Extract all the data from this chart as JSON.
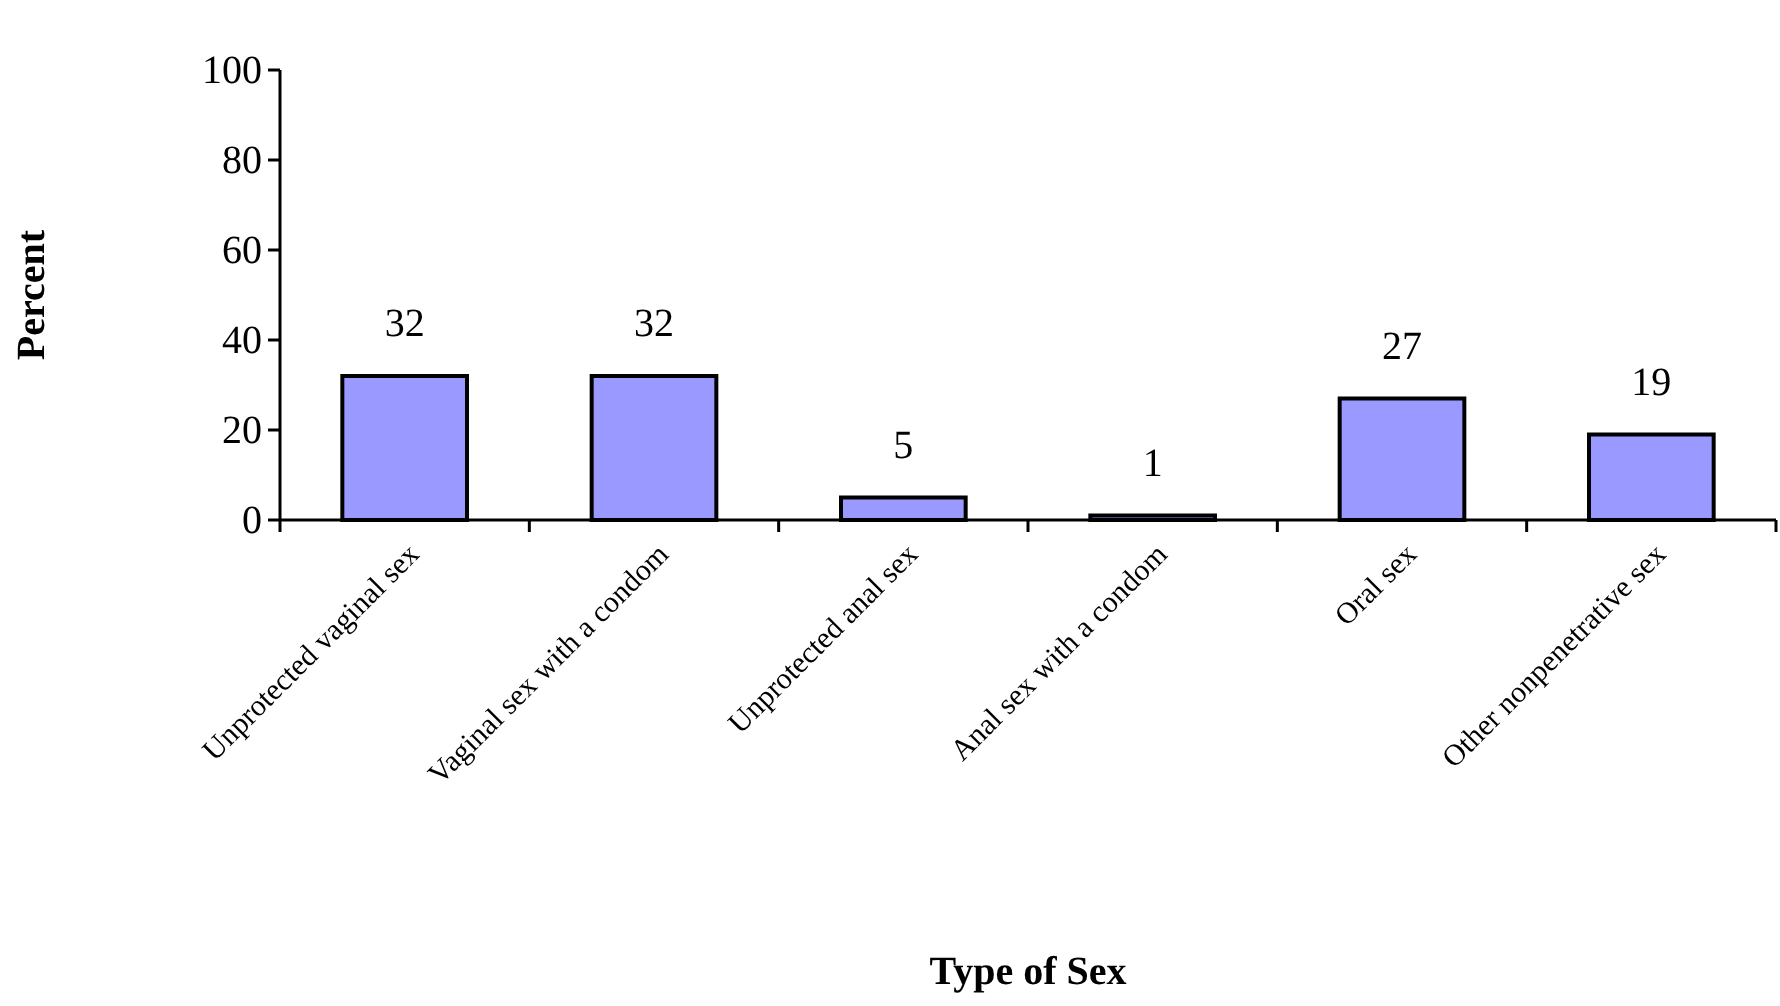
{
  "chart_data": {
    "type": "bar",
    "xlabel": "Type of Sex",
    "ylabel": "Percent",
    "categories": [
      "Unprotected vaginal sex",
      "Vaginal sex with a condom",
      "Unprotected anal sex",
      "Anal sex with a condom",
      "Oral sex",
      "Other nonpenetrative sex"
    ],
    "values": [
      32,
      32,
      5,
      1,
      27,
      19
    ],
    "color": "#9999ff",
    "ylim": [
      0,
      100
    ],
    "yticks": [
      0,
      20,
      40,
      60,
      80,
      100
    ],
    "grid": false,
    "data_labels": true
  }
}
